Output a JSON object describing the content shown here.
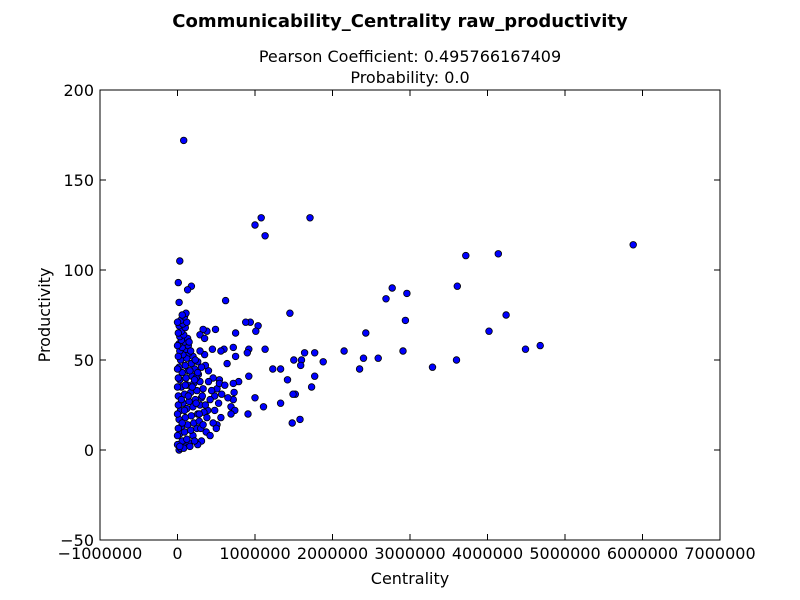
{
  "chart_data": {
    "type": "scatter",
    "title": "Communicability_Centrality raw_productivity",
    "subtitle_lines": [
      "Pearson Coefficient: 0.495766167409",
      "Probability: 0.0"
    ],
    "xlabel": "Centrality",
    "ylabel": "Productivity",
    "xlim": [
      -1000000,
      7000000
    ],
    "ylim": [
      -50,
      200
    ],
    "xticks": [
      -1000000,
      0,
      1000000,
      2000000,
      3000000,
      4000000,
      5000000,
      6000000,
      7000000
    ],
    "xtick_labels": [
      "−1000000",
      "0",
      "1000000",
      "2000000",
      "3000000",
      "4000000",
      "5000000",
      "6000000",
      "7000000"
    ],
    "yticks": [
      -50,
      0,
      50,
      100,
      150,
      200
    ],
    "ytick_labels": [
      "−50",
      "0",
      "50",
      "100",
      "150",
      "200"
    ],
    "grid": false,
    "marker_color": "#0000ff",
    "marker_edge_color": "#000000",
    "points": [
      [
        80000,
        172
      ],
      [
        30000,
        105
      ],
      [
        1000000,
        125
      ],
      [
        1080000,
        129
      ],
      [
        1130000,
        119
      ],
      [
        1710000,
        129
      ],
      [
        3720000,
        108
      ],
      [
        4140000,
        109
      ],
      [
        5880000,
        114
      ],
      [
        10000,
        93
      ],
      [
        180000,
        91
      ],
      [
        130000,
        89
      ],
      [
        20000,
        82
      ],
      [
        620000,
        83
      ],
      [
        2770000,
        90
      ],
      [
        2690000,
        84
      ],
      [
        2960000,
        87
      ],
      [
        3610000,
        91
      ],
      [
        1450000,
        76
      ],
      [
        2940000,
        72
      ],
      [
        4240000,
        75
      ],
      [
        4020000,
        66
      ],
      [
        2430000,
        65
      ],
      [
        4490000,
        56
      ],
      [
        4680000,
        58
      ],
      [
        3600000,
        50
      ],
      [
        3290000,
        46
      ],
      [
        2910000,
        55
      ],
      [
        2590000,
        51
      ],
      [
        2400000,
        51
      ],
      [
        2350000,
        45
      ],
      [
        2150000,
        55
      ],
      [
        1880000,
        49
      ],
      [
        1770000,
        54
      ],
      [
        1640000,
        54
      ],
      [
        1600000,
        50
      ],
      [
        1590000,
        47
      ],
      [
        1500000,
        50
      ],
      [
        1420000,
        39
      ],
      [
        1330000,
        45
      ],
      [
        1230000,
        45
      ],
      [
        1130000,
        56
      ],
      [
        1770000,
        41
      ],
      [
        1730000,
        35
      ],
      [
        1520000,
        31
      ],
      [
        1490000,
        31
      ],
      [
        1330000,
        26
      ],
      [
        1110000,
        24
      ],
      [
        1000000,
        29
      ],
      [
        910000,
        20
      ],
      [
        1480000,
        15
      ],
      [
        1580000,
        17
      ],
      [
        1040000,
        69
      ],
      [
        1010000,
        66
      ],
      [
        940000,
        71
      ],
      [
        880000,
        71
      ],
      [
        750000,
        65
      ],
      [
        920000,
        56
      ],
      [
        900000,
        54
      ],
      [
        720000,
        57
      ],
      [
        750000,
        52
      ],
      [
        600000,
        56
      ],
      [
        640000,
        48
      ],
      [
        790000,
        38
      ],
      [
        720000,
        37
      ],
      [
        730000,
        32
      ],
      [
        690000,
        24
      ],
      [
        740000,
        22
      ],
      [
        720000,
        28
      ],
      [
        920000,
        41
      ],
      [
        490000,
        67
      ],
      [
        380000,
        66
      ],
      [
        330000,
        67
      ],
      [
        290000,
        64
      ],
      [
        350000,
        62
      ],
      [
        450000,
        56
      ],
      [
        350000,
        53
      ],
      [
        290000,
        55
      ],
      [
        540000,
        39
      ],
      [
        510000,
        34
      ],
      [
        480000,
        30
      ],
      [
        420000,
        28
      ],
      [
        390000,
        22
      ],
      [
        510000,
        14
      ],
      [
        310000,
        5
      ],
      [
        260000,
        3
      ],
      [
        560000,
        55
      ],
      [
        540000,
        37
      ],
      [
        460000,
        40
      ],
      [
        400000,
        44
      ],
      [
        20000,
        0
      ],
      [
        40000,
        1
      ],
      [
        70000,
        2
      ],
      [
        110000,
        3
      ],
      [
        150000,
        4
      ],
      [
        60000,
        5
      ],
      [
        120000,
        6
      ],
      [
        200000,
        8
      ],
      [
        30000,
        9
      ],
      [
        90000,
        10
      ],
      [
        170000,
        11
      ],
      [
        250000,
        12
      ],
      [
        50000,
        13
      ],
      [
        130000,
        14
      ],
      [
        210000,
        15
      ],
      [
        280000,
        16
      ],
      [
        20000,
        17
      ],
      [
        100000,
        18
      ],
      [
        180000,
        19
      ],
      [
        260000,
        20
      ],
      [
        340000,
        21
      ],
      [
        40000,
        22
      ],
      [
        120000,
        23
      ],
      [
        200000,
        24
      ],
      [
        290000,
        25
      ],
      [
        70000,
        26
      ],
      [
        150000,
        27
      ],
      [
        230000,
        28
      ],
      [
        310000,
        29
      ],
      [
        10000,
        30
      ],
      [
        90000,
        31
      ],
      [
        170000,
        32
      ],
      [
        250000,
        33
      ],
      [
        330000,
        34
      ],
      [
        50000,
        35
      ],
      [
        130000,
        36
      ],
      [
        210000,
        37
      ],
      [
        290000,
        38
      ],
      [
        30000,
        39
      ],
      [
        110000,
        40
      ],
      [
        190000,
        41
      ],
      [
        270000,
        42
      ],
      [
        60000,
        43
      ],
      [
        140000,
        44
      ],
      [
        220000,
        45
      ],
      [
        20000,
        46
      ],
      [
        100000,
        47
      ],
      [
        180000,
        48
      ],
      [
        260000,
        49
      ],
      [
        40000,
        50
      ],
      [
        120000,
        51
      ],
      [
        200000,
        52
      ],
      [
        70000,
        53
      ],
      [
        150000,
        54
      ],
      [
        30000,
        55
      ],
      [
        110000,
        56
      ],
      [
        60000,
        57
      ],
      [
        140000,
        58
      ],
      [
        20000,
        59
      ],
      [
        90000,
        60
      ],
      [
        50000,
        61
      ],
      [
        130000,
        62
      ],
      [
        30000,
        63
      ],
      [
        80000,
        64
      ],
      [
        50000,
        66
      ],
      [
        100000,
        68
      ],
      [
        20000,
        69
      ],
      [
        70000,
        70
      ],
      [
        120000,
        71
      ],
      [
        40000,
        72
      ],
      [
        90000,
        74
      ],
      [
        110000,
        76
      ],
      [
        60000,
        75
      ],
      [
        150000,
        60
      ],
      [
        170000,
        55
      ],
      [
        230000,
        50
      ],
      [
        240000,
        40
      ],
      [
        320000,
        30
      ],
      [
        360000,
        25
      ],
      [
        380000,
        18
      ],
      [
        300000,
        12
      ],
      [
        220000,
        5
      ],
      [
        160000,
        2
      ],
      [
        80000,
        1
      ],
      [
        0,
        3
      ],
      [
        0,
        8
      ],
      [
        10000,
        12
      ],
      [
        0,
        20
      ],
      [
        10000,
        25
      ],
      [
        0,
        35
      ],
      [
        10000,
        40
      ],
      [
        0,
        45
      ],
      [
        10000,
        52
      ],
      [
        0,
        58
      ],
      [
        10000,
        65
      ],
      [
        0,
        71
      ],
      [
        30000,
        2
      ],
      [
        60000,
        15
      ],
      [
        90000,
        22
      ],
      [
        140000,
        30
      ],
      [
        190000,
        35
      ],
      [
        240000,
        26
      ],
      [
        280000,
        20
      ],
      [
        330000,
        14
      ],
      [
        370000,
        10
      ],
      [
        420000,
        8
      ],
      [
        460000,
        15
      ],
      [
        480000,
        22
      ],
      [
        530000,
        26
      ],
      [
        570000,
        31
      ],
      [
        610000,
        36
      ],
      [
        650000,
        29
      ],
      [
        690000,
        20
      ],
      [
        560000,
        18
      ],
      [
        500000,
        12
      ],
      [
        440000,
        33
      ],
      [
        400000,
        38
      ],
      [
        360000,
        47
      ],
      [
        310000,
        46
      ],
      [
        260000,
        43
      ],
      [
        220000,
        39
      ],
      [
        160000,
        44
      ],
      [
        100000,
        36
      ],
      [
        50000,
        28
      ]
    ]
  }
}
